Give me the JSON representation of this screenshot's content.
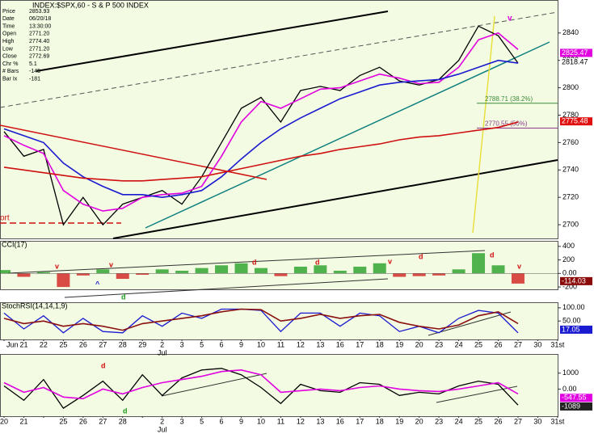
{
  "chart_data": [
    {
      "type": "line",
      "title": "INDEX:$SPX,60 - S & P 500 INDEX",
      "info": [
        [
          "Price",
          "2853.93"
        ],
        [
          "Date",
          "06/20/18"
        ],
        [
          "Time",
          "13:30:00"
        ],
        [
          "Open",
          "2771.20"
        ],
        [
          "High",
          "2774.40"
        ],
        [
          "Low",
          "2771.20"
        ],
        [
          "Close",
          "2772.69"
        ],
        [
          "Chr %",
          "5.1"
        ],
        [
          "# Bars",
          "-145"
        ],
        [
          "Bar Ix",
          "-181"
        ]
      ],
      "ylim": [
        2690,
        2863.5
      ],
      "yticks": [
        2700,
        2720,
        2740,
        2760,
        2780,
        2800,
        2820,
        2840
      ],
      "series": [
        {
          "color": "#000000",
          "values": [
            2768,
            2750,
            2755,
            2700,
            2720,
            2700,
            2715,
            2720,
            2725,
            2715,
            2735,
            2760,
            2785,
            2793,
            2775,
            2798,
            2801,
            2798,
            2809,
            2815,
            2805,
            2802,
            2806,
            2820,
            2845,
            2838,
            2818,
            null,
            null
          ]
        },
        {
          "color": "#e000e0",
          "values": [
            2765,
            2758,
            2752,
            2725,
            2715,
            2710,
            2712,
            2720,
            2722,
            2723,
            2728,
            2750,
            2775,
            2790,
            2785,
            2792,
            2799,
            2800,
            2805,
            2810,
            2807,
            2803,
            2804,
            2815,
            2835,
            2840,
            2828,
            null,
            null
          ]
        },
        {
          "color": "#1a1ad0",
          "values": [
            2770,
            2765,
            2760,
            2745,
            2735,
            2728,
            2722,
            2722,
            2720,
            2722,
            2725,
            2735,
            2748,
            2760,
            2770,
            2778,
            2785,
            2792,
            2797,
            2802,
            2804,
            2805,
            2806,
            2810,
            2815,
            2820,
            2818,
            null,
            null
          ]
        },
        {
          "color": "#d01010",
          "values": [
            2742,
            2740,
            2738,
            2736,
            2734,
            2733,
            2732,
            2732,
            2733,
            2734,
            2735,
            2738,
            2741,
            2744,
            2747,
            2750,
            2752,
            2755,
            2757,
            2759,
            2762,
            2764,
            2765,
            2767,
            2769,
            2771,
            2775,
            null,
            null
          ]
        }
      ],
      "levels": [
        {
          "value": 2788.71,
          "label": "2788.71 (38.2%)",
          "color": "#3c8c3c"
        },
        {
          "value": 2770.55,
          "label": "2770.55 (50%)",
          "color": "#8c3c8c"
        }
      ],
      "flags": [
        {
          "value": 2825.47,
          "label": "2825.47",
          "color": "#e000e0"
        },
        {
          "value": 2818.47,
          "label": "2818.47",
          "color": "#ffffff"
        },
        {
          "value": 2775.48,
          "label": "2775.48",
          "color": "#e01010"
        }
      ],
      "annotations": [
        "ort",
        "v"
      ]
    },
    {
      "type": "histogram",
      "title": "CCI(17)",
      "ylim": [
        -235,
        470
      ],
      "yticks": [
        400,
        200,
        {
          "value": 0,
          "label": "0.00"
        },
        -200
      ],
      "up_color": "#1a9a1a",
      "down_color": "#d01010",
      "values": [
        50,
        -50,
        20,
        -200,
        -30,
        60,
        -80,
        -20,
        60,
        40,
        80,
        120,
        150,
        80,
        -40,
        100,
        120,
        40,
        100,
        150,
        -50,
        -40,
        -30,
        60,
        300,
        120,
        -150,
        null,
        null
      ],
      "flags": [
        {
          "value": -114.03,
          "label": "-114.03",
          "color": "#8a0a0a"
        }
      ],
      "annotations": [
        "v",
        "v",
        "^",
        "d",
        "d",
        "d",
        "v",
        "d",
        "d",
        "v"
      ]
    },
    {
      "type": "line",
      "title": "StochRSI(14,14,1,9)",
      "ylim": [
        -20,
        118
      ],
      "yticks": [
        {
          "value": 100,
          "label": "100.00"
        },
        {
          "value": 50,
          "label": "50.00"
        }
      ],
      "categories": [
        null,
        "21",
        "22",
        "25",
        "26",
        "27",
        "28",
        "29",
        "2",
        "3",
        "5",
        "6",
        "9",
        "10",
        "11",
        "12",
        "13",
        "16",
        "17",
        "18",
        "19",
        "20",
        "23",
        "24",
        "25",
        "26",
        "27",
        "30",
        "31st"
      ],
      "months": [
        "Jun",
        "Jul"
      ],
      "series": [
        {
          "color": "#1a1ad0",
          "values": [
            80,
            20,
            70,
            5,
            60,
            10,
            5,
            70,
            30,
            80,
            60,
            95,
            95,
            90,
            10,
            80,
            80,
            30,
            80,
            70,
            10,
            30,
            5,
            60,
            90,
            80,
            5,
            null,
            null
          ]
        },
        {
          "color": "#8a1010",
          "values": [
            60,
            40,
            50,
            30,
            40,
            30,
            15,
            40,
            50,
            60,
            70,
            85,
            95,
            93,
            50,
            60,
            75,
            60,
            70,
            75,
            45,
            30,
            20,
            35,
            70,
            85,
            40,
            null,
            null
          ]
        }
      ],
      "flags": [
        {
          "value": 17.05,
          "label": "17.05",
          "color": "#1a1ad0"
        }
      ]
    },
    {
      "type": "line",
      "ylim": [
        -1700,
        2150
      ],
      "yticks": [
        1000,
        {
          "value": 0,
          "label": "0.00"
        }
      ],
      "categories": [
        "20",
        "21",
        null,
        "25",
        "26",
        "27",
        "28",
        null,
        "2",
        "3",
        "5",
        "6",
        "9",
        "10",
        "11",
        "12",
        "13",
        "16",
        "17",
        "18",
        "19",
        "20",
        "23",
        "24",
        "25",
        "26",
        "27",
        "30",
        "31st"
      ],
      "months": [
        "Jul"
      ],
      "series": [
        {
          "color": "#000000",
          "values": [
            200,
            -700,
            600,
            -1200,
            -400,
            500,
            -700,
            900,
            -400,
            700,
            1200,
            1300,
            900,
            100,
            -900,
            300,
            -100,
            -200,
            400,
            300,
            -400,
            -200,
            -300,
            200,
            500,
            300,
            -1000,
            null,
            null
          ]
        },
        {
          "color": "#e000e0",
          "values": [
            400,
            -200,
            100,
            -500,
            -600,
            0,
            -300,
            100,
            400,
            600,
            800,
            1100,
            1200,
            900,
            -200,
            -100,
            0,
            -100,
            100,
            200,
            0,
            -100,
            -150,
            0,
            200,
            400,
            -300,
            null,
            null
          ]
        }
      ],
      "flags": [
        {
          "value": -547.55,
          "label": "-547.55",
          "color": "#e000e0"
        },
        {
          "value": -1089,
          "label": "-1089",
          "color": "#222222"
        }
      ],
      "annotations": [
        "d",
        "d"
      ]
    }
  ]
}
